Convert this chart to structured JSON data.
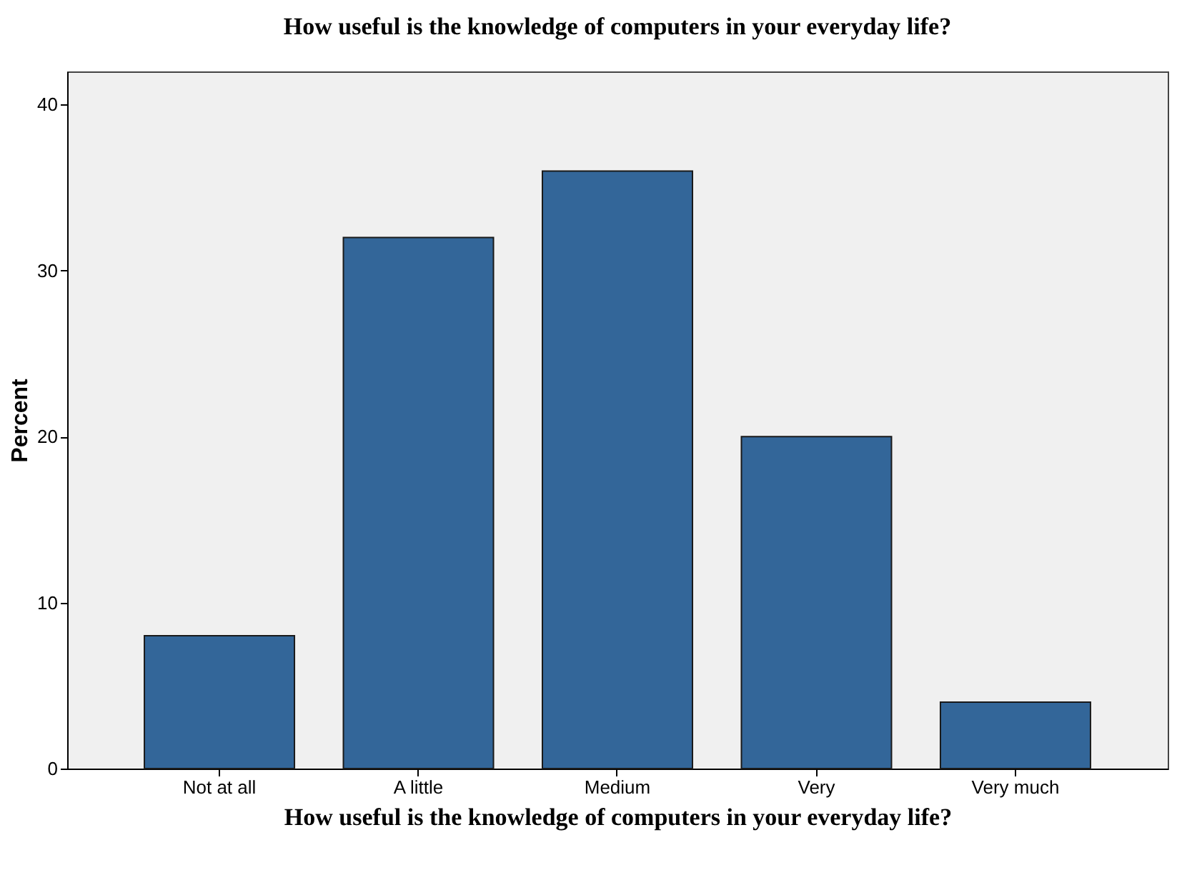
{
  "chart_data": {
    "type": "bar",
    "title": "How useful is the knowledge of computers in your everyday life?",
    "xlabel": "How useful is the knowledge of computers in your everyday life?",
    "ylabel": "Percent",
    "categories": [
      "Not at all",
      "A little",
      "Medium",
      "Very",
      "Very much"
    ],
    "values": [
      8,
      32,
      36,
      20,
      4
    ],
    "color": "#336699",
    "ylim": [
      0,
      42
    ],
    "yticks": [
      0,
      10,
      20,
      30,
      40
    ],
    "grid": false
  }
}
